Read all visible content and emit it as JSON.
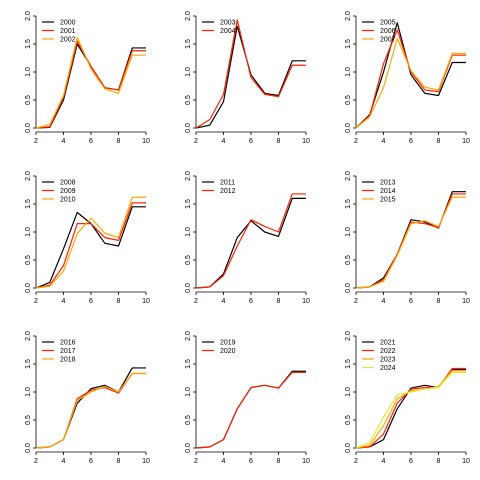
{
  "colors": {
    "axis": "#000000",
    "series_palette": [
      "#000000",
      "#ff2200",
      "#ffaa00",
      "#ddee33"
    ]
  },
  "chart_data": [
    {
      "type": "line",
      "x": [
        2,
        3,
        4,
        5,
        6,
        7,
        8,
        9,
        10
      ],
      "xticks": [
        2,
        4,
        6,
        8,
        10
      ],
      "yticks": [
        "0.0",
        "0.5",
        "1.0",
        "1.5",
        "2.0"
      ],
      "xlim": [
        2,
        10
      ],
      "ylim": [
        0,
        2
      ],
      "legend_position": "top-left",
      "series": [
        {
          "name": "2000",
          "color": "#000000",
          "values": [
            0,
            0.01,
            0.5,
            1.5,
            1.1,
            0.72,
            0.68,
            1.43,
            1.43
          ]
        },
        {
          "name": "2001",
          "color": "#ff2200",
          "values": [
            0,
            0.02,
            0.55,
            1.55,
            1.1,
            0.72,
            0.68,
            1.38,
            1.38
          ]
        },
        {
          "name": "2002",
          "color": "#ffaa00",
          "values": [
            0,
            0.06,
            0.58,
            1.62,
            1.05,
            0.7,
            0.62,
            1.3,
            1.3
          ]
        }
      ]
    },
    {
      "type": "line",
      "x": [
        2,
        3,
        4,
        5,
        6,
        7,
        8,
        9,
        10
      ],
      "xticks": [
        2,
        4,
        6,
        8,
        10
      ],
      "yticks": [
        "0.0",
        "0.5",
        "1.0",
        "1.5",
        "2.0"
      ],
      "xlim": [
        2,
        10
      ],
      "ylim": [
        0,
        2
      ],
      "legend_position": "top-left",
      "series": [
        {
          "name": "2003",
          "color": "#000000",
          "values": [
            0,
            0.05,
            0.47,
            1.82,
            0.95,
            0.62,
            0.58,
            1.2,
            1.2
          ]
        },
        {
          "name": "2004",
          "color": "#ff2200",
          "values": [
            0,
            0.15,
            0.6,
            1.93,
            0.9,
            0.6,
            0.56,
            1.12,
            1.12
          ]
        }
      ]
    },
    {
      "type": "line",
      "x": [
        2,
        3,
        4,
        5,
        6,
        7,
        8,
        9,
        10
      ],
      "xticks": [
        2,
        4,
        6,
        8,
        10
      ],
      "yticks": [
        "0.0",
        "0.5",
        "1.0",
        "1.5",
        "2.0"
      ],
      "xlim": [
        2,
        10
      ],
      "ylim": [
        0,
        2
      ],
      "legend_position": "top-left",
      "series": [
        {
          "name": "2005",
          "color": "#000000",
          "values": [
            0,
            0.24,
            1.0,
            1.88,
            0.95,
            0.62,
            0.58,
            1.17,
            1.17
          ]
        },
        {
          "name": "2006",
          "color": "#ff2200",
          "values": [
            0,
            0.22,
            1.15,
            1.75,
            1.0,
            0.68,
            0.65,
            1.3,
            1.3
          ]
        },
        {
          "name": "2007",
          "color": "#ffaa00",
          "values": [
            0,
            0.2,
            0.72,
            1.6,
            1.02,
            0.73,
            0.68,
            1.33,
            1.33
          ]
        }
      ]
    },
    {
      "type": "line",
      "x": [
        2,
        3,
        4,
        5,
        6,
        7,
        8,
        9,
        10
      ],
      "xticks": [
        2,
        4,
        6,
        8,
        10
      ],
      "yticks": [
        "0.0",
        "0.5",
        "1.0",
        "1.5",
        "2.0"
      ],
      "xlim": [
        2,
        10
      ],
      "ylim": [
        0,
        2
      ],
      "legend_position": "top-left",
      "series": [
        {
          "name": "2008",
          "color": "#000000",
          "values": [
            0,
            0.1,
            0.7,
            1.35,
            1.15,
            0.8,
            0.75,
            1.45,
            1.45
          ]
        },
        {
          "name": "2009",
          "color": "#ff2200",
          "values": [
            0,
            0.05,
            0.4,
            1.15,
            1.15,
            0.9,
            0.85,
            1.52,
            1.52
          ]
        },
        {
          "name": "2010",
          "color": "#ffaa00",
          "values": [
            0,
            0.03,
            0.3,
            0.97,
            1.25,
            0.98,
            0.9,
            1.62,
            1.62
          ]
        }
      ]
    },
    {
      "type": "line",
      "x": [
        2,
        3,
        4,
        5,
        6,
        7,
        8,
        9,
        10
      ],
      "xticks": [
        2,
        4,
        6,
        8,
        10
      ],
      "yticks": [
        "0.0",
        "0.5",
        "1.0",
        "1.5",
        "2.0"
      ],
      "xlim": [
        2,
        10
      ],
      "ylim": [
        0,
        2
      ],
      "legend_position": "top-left",
      "series": [
        {
          "name": "2011",
          "color": "#000000",
          "values": [
            0,
            0.02,
            0.25,
            0.9,
            1.2,
            1.0,
            0.92,
            1.6,
            1.6
          ]
        },
        {
          "name": "2012",
          "color": "#ff2200",
          "values": [
            0,
            0.02,
            0.22,
            0.75,
            1.22,
            1.1,
            1.0,
            1.68,
            1.68
          ]
        }
      ]
    },
    {
      "type": "line",
      "x": [
        2,
        3,
        4,
        5,
        6,
        7,
        8,
        9,
        10
      ],
      "xticks": [
        2,
        4,
        6,
        8,
        10
      ],
      "yticks": [
        "0.0",
        "0.5",
        "1.0",
        "1.5",
        "2.0"
      ],
      "xlim": [
        2,
        10
      ],
      "ylim": [
        0,
        2
      ],
      "legend_position": "top-left",
      "series": [
        {
          "name": "2013",
          "color": "#000000",
          "values": [
            0,
            0.02,
            0.18,
            0.6,
            1.22,
            1.18,
            1.07,
            1.72,
            1.72
          ]
        },
        {
          "name": "2014",
          "color": "#ff2200",
          "values": [
            0,
            0.02,
            0.15,
            0.6,
            1.18,
            1.15,
            1.08,
            1.68,
            1.68
          ]
        },
        {
          "name": "2015",
          "color": "#ffaa00",
          "values": [
            0,
            0.02,
            0.12,
            0.58,
            1.15,
            1.2,
            1.1,
            1.62,
            1.62
          ]
        }
      ]
    },
    {
      "type": "line",
      "x": [
        2,
        3,
        4,
        5,
        6,
        7,
        8,
        9,
        10
      ],
      "xticks": [
        2,
        4,
        6,
        8,
        10
      ],
      "yticks": [
        "0.0",
        "0.5",
        "1.0",
        "1.5",
        "2.0"
      ],
      "xlim": [
        2,
        10
      ],
      "ylim": [
        0,
        2
      ],
      "legend_position": "top-left",
      "series": [
        {
          "name": "2016",
          "color": "#000000",
          "values": [
            0,
            0.02,
            0.15,
            0.8,
            1.06,
            1.12,
            1.0,
            1.43,
            1.43
          ]
        },
        {
          "name": "2017",
          "color": "#ff2200",
          "values": [
            0,
            0.02,
            0.15,
            0.88,
            1.03,
            1.08,
            0.98,
            1.33,
            1.33
          ]
        },
        {
          "name": "2018",
          "color": "#ffaa00",
          "values": [
            0,
            0.02,
            0.15,
            0.85,
            1.0,
            1.1,
            1.0,
            1.33,
            1.33
          ]
        }
      ]
    },
    {
      "type": "line",
      "x": [
        2,
        3,
        4,
        5,
        6,
        7,
        8,
        9,
        10
      ],
      "xticks": [
        2,
        4,
        6,
        8,
        10
      ],
      "yticks": [
        "0.0",
        "0.5",
        "1.0",
        "1.5",
        "2.0"
      ],
      "xlim": [
        2,
        10
      ],
      "ylim": [
        0,
        2
      ],
      "legend_position": "top-left",
      "series": [
        {
          "name": "2019",
          "color": "#000000",
          "values": [
            0,
            0.02,
            0.15,
            0.7,
            1.08,
            1.12,
            1.07,
            1.37,
            1.37
          ]
        },
        {
          "name": "2020",
          "color": "#ff2200",
          "values": [
            0,
            0.02,
            0.15,
            0.7,
            1.08,
            1.12,
            1.07,
            1.35,
            1.35
          ]
        }
      ]
    },
    {
      "type": "line",
      "x": [
        2,
        3,
        4,
        5,
        6,
        7,
        8,
        9,
        10
      ],
      "xticks": [
        2,
        4,
        6,
        8,
        10
      ],
      "yticks": [
        "0.0",
        "0.5",
        "1.0",
        "1.5",
        "2.0"
      ],
      "xlim": [
        2,
        10
      ],
      "ylim": [
        0,
        2
      ],
      "legend_position": "top-left",
      "series": [
        {
          "name": "2021",
          "color": "#000000",
          "values": [
            0,
            0.02,
            0.15,
            0.7,
            1.07,
            1.12,
            1.08,
            1.4,
            1.4
          ]
        },
        {
          "name": "2022",
          "color": "#ff2200",
          "values": [
            0,
            0.02,
            0.25,
            0.8,
            1.05,
            1.08,
            1.08,
            1.42,
            1.42
          ]
        },
        {
          "name": "2023",
          "color": "#ffaa00",
          "values": [
            0,
            0.05,
            0.4,
            0.88,
            1.02,
            1.05,
            1.1,
            1.38,
            1.38
          ]
        },
        {
          "name": "2024",
          "color": "#ddee33",
          "values": [
            0,
            0.1,
            0.55,
            0.95,
            1.0,
            1.05,
            1.08,
            1.35,
            1.35
          ]
        }
      ]
    }
  ]
}
